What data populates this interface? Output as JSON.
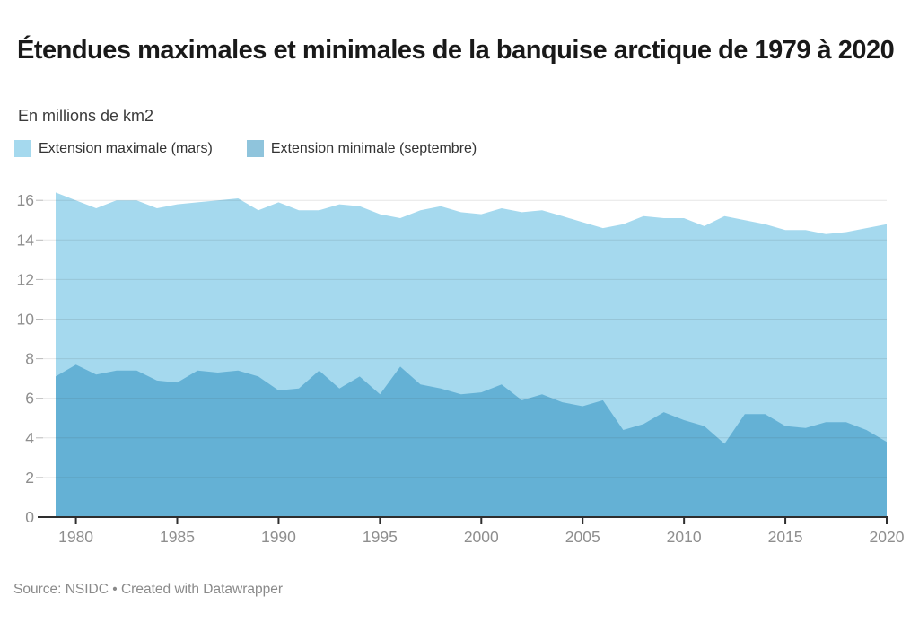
{
  "header": {
    "title": "Étendues maximales et minimales de la banquise arctique de 1979 à 2020",
    "subtitle": "En millions de km2"
  },
  "legend": [
    {
      "label": "Extension maximale (mars)",
      "color": "#a5d9ee"
    },
    {
      "label": "Extension minimale (septembre)",
      "color": "#8fc4dc"
    }
  ],
  "chart_data": {
    "type": "area",
    "title": "Étendues maximales et minimales de la banquise arctique de 1979 à 2020",
    "subtitle": "En millions de km2",
    "unit": "millions de km2",
    "x": [
      1979,
      1980,
      1981,
      1982,
      1983,
      1984,
      1985,
      1986,
      1987,
      1988,
      1989,
      1990,
      1991,
      1992,
      1993,
      1994,
      1995,
      1996,
      1997,
      1998,
      1999,
      2000,
      2001,
      2002,
      2003,
      2004,
      2005,
      2006,
      2007,
      2008,
      2009,
      2010,
      2011,
      2012,
      2013,
      2014,
      2015,
      2016,
      2017,
      2018,
      2019,
      2020
    ],
    "series": [
      {
        "name": "Extension maximale (mars)",
        "color": "#a5d9ee",
        "values": [
          16.4,
          16.0,
          15.6,
          16.0,
          16.0,
          15.6,
          15.8,
          15.9,
          16.0,
          16.1,
          15.5,
          15.9,
          15.5,
          15.5,
          15.8,
          15.7,
          15.3,
          15.1,
          15.5,
          15.7,
          15.4,
          15.3,
          15.6,
          15.4,
          15.5,
          15.2,
          14.9,
          14.6,
          14.8,
          15.2,
          15.1,
          15.1,
          14.7,
          15.2,
          15.0,
          14.8,
          14.5,
          14.5,
          14.3,
          14.4,
          14.6,
          14.8
        ]
      },
      {
        "name": "Extension minimale (septembre)",
        "color": "#64b1d5",
        "values": [
          7.1,
          7.7,
          7.2,
          7.4,
          7.4,
          6.9,
          6.8,
          7.4,
          7.3,
          7.4,
          7.1,
          6.4,
          6.5,
          7.4,
          6.5,
          7.1,
          6.2,
          7.6,
          6.7,
          6.5,
          6.2,
          6.3,
          6.7,
          5.9,
          6.2,
          5.8,
          5.6,
          5.9,
          4.4,
          4.7,
          5.3,
          4.9,
          4.6,
          3.7,
          5.2,
          5.2,
          4.6,
          4.5,
          4.8,
          4.8,
          4.4,
          3.8
        ]
      }
    ],
    "ylim": [
      0,
      16.5
    ],
    "yticks": [
      0,
      2,
      4,
      6,
      8,
      10,
      12,
      14,
      16
    ],
    "xticks": [
      1980,
      1985,
      1990,
      1995,
      2000,
      2005,
      2010,
      2015,
      2020
    ],
    "grid": true,
    "legend_position": "top-left"
  },
  "footer": {
    "text": "Source: NSIDC • Created with Datawrapper"
  }
}
